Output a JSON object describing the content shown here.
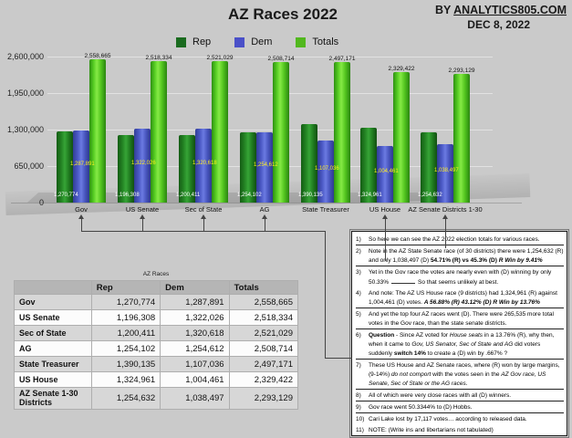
{
  "header": {
    "title": "AZ Races 2022",
    "by": "BY",
    "site": "ANALYTICS805.COM",
    "date": "DEC 8, 2022"
  },
  "legend": [
    {
      "label": "Rep",
      "color": "#1a6b1f"
    },
    {
      "label": "Dem",
      "color": "#4a50c8"
    },
    {
      "label": "Totals",
      "color": "#52b81e"
    }
  ],
  "chart_data": {
    "type": "bar",
    "title": "AZ Races 2022",
    "categories": [
      "Gov",
      "US Senate",
      "Sec of State",
      "AG",
      "State Treasurer",
      "US House",
      "AZ Senate Districts 1-30"
    ],
    "series": [
      {
        "name": "Rep",
        "color": "#1a6b1f",
        "values": [
          1270774,
          1196308,
          1200411,
          1254102,
          1390135,
          1324961,
          1254632
        ]
      },
      {
        "name": "Dem",
        "color": "#4a50c8",
        "values": [
          1287891,
          1322026,
          1320618,
          1254612,
          1107036,
          1004461,
          1038497
        ]
      },
      {
        "name": "Totals",
        "color": "#52b81e",
        "values": [
          2558665,
          2518334,
          2521029,
          2508714,
          2497171,
          2329422,
          2293129
        ]
      }
    ],
    "ylim": [
      0,
      2600000
    ],
    "yticks": [
      {
        "label": "2,600,000",
        "value": 2600000
      },
      {
        "label": "1,950,000",
        "value": 1950000
      },
      {
        "label": "1,300,000",
        "value": 1300000
      },
      {
        "label": "650,000",
        "value": 650000
      },
      {
        "label": "0",
        "value": 0
      }
    ],
    "grid": true,
    "legend_position": "top"
  },
  "table": {
    "title": "AZ Races",
    "columns": [
      "",
      "Rep",
      "Dem",
      "Totals"
    ],
    "rows": [
      {
        "label": "Gov",
        "rep": "1,270,774",
        "dem": "1,287,891",
        "totals": "2,558,665"
      },
      {
        "label": "US Senate",
        "rep": "1,196,308",
        "dem": "1,322,026",
        "totals": "2,518,334"
      },
      {
        "label": "Sec of State",
        "rep": "1,200,411",
        "dem": "1,320,618",
        "totals": "2,521,029"
      },
      {
        "label": "AG",
        "rep": "1,254,102",
        "dem": "1,254,612",
        "totals": "2,508,714"
      },
      {
        "label": "State Treasurer",
        "rep": "1,390,135",
        "dem": "1,107,036",
        "totals": "2,497,171"
      },
      {
        "label": "US House",
        "rep": "1,324,961",
        "dem": "1,004,461",
        "totals": "2,329,422"
      },
      {
        "label": "AZ Senate 1-30 Districts",
        "rep": "1,254,632",
        "dem": "1,038,497",
        "totals": "2,293,129"
      }
    ]
  },
  "notes": {
    "items": [
      {
        "num": "1)",
        "ruled": true,
        "segments": [
          {
            "t": "So here we can see the AZ 2022 election totals for various races."
          }
        ]
      },
      {
        "num": "2)",
        "ruled": true,
        "segments": [
          {
            "t": "Note in the AZ State Senate race (of 30 districts) there were 1,254,632 (R) and only 1,038,497 (D)    "
          },
          {
            "t": "54.71% (R) vs 45.3% (D)",
            "s": "b"
          },
          {
            "t": "   "
          },
          {
            "t": "R Win by 9.41%",
            "s": "bi"
          }
        ]
      },
      {
        "num": "3)",
        "ruled": false,
        "segments": [
          {
            "t": "Yet in the Gov race the votes are nearly even with (D) winning by only 50.33%"
          },
          {
            "gap": true
          },
          {
            "t": "So that seems unlikely at best."
          }
        ]
      },
      {
        "num": "4)",
        "ruled": true,
        "segments": [
          {
            "t": "And note: The AZ US House race (9 districts) had 1,324,961 (R) against 1,004,461 (D) votes.   "
          },
          {
            "t": "A 56.88% (R) 43.12% (D)",
            "s": "bi"
          },
          {
            "t": "   "
          },
          {
            "t": "R Win by 13.76%",
            "s": "bi"
          }
        ]
      },
      {
        "num": "5)",
        "ruled": true,
        "segments": [
          {
            "t": "And yet the top four AZ races went (D).   There were 265,535 more total votes in the Gov race, than the state senate districts."
          }
        ]
      },
      {
        "num": "6)",
        "ruled": true,
        "segments": [
          {
            "t": "Question",
            "s": "b"
          },
          {
            "t": " - Since AZ voted for "
          },
          {
            "t": "House seats",
            "s": "i"
          },
          {
            "t": " in a 13.76% (R), why then, when it came to "
          },
          {
            "t": "Gov, US Senator, Sec of State and AG",
            "s": "i"
          },
          {
            "t": " did voters suddenly "
          },
          {
            "t": "switch 14%",
            "s": "b"
          },
          {
            "t": " to create a (D) win by .667% ?"
          }
        ]
      },
      {
        "num": "7)",
        "ruled": true,
        "segments": [
          {
            "t": "These US House and AZ Senate races, where (R) won by large margins, (9-14%) "
          },
          {
            "t": "do not comport",
            "s": "i"
          },
          {
            "t": " with the votes seen in the "
          },
          {
            "t": "AZ Gov race,  US Senate, Sec of State or the AG races.",
            "s": "i"
          }
        ]
      },
      {
        "num": "8)",
        "ruled": true,
        "segments": [
          {
            "t": "All of which were very close races with all (D) winners."
          }
        ]
      },
      {
        "num": "9)",
        "ruled": true,
        "segments": [
          {
            "t": "Gov race went 50.3344% to (D) Hobbs."
          }
        ]
      },
      {
        "num": "10)",
        "ruled": false,
        "segments": [
          {
            "t": "Cari Lake lost by 17,117 votes… according to released data."
          }
        ]
      },
      {
        "num": "11)",
        "ruled": false,
        "segments": [
          {
            "t": "NOTE: (Write ins and libertarians not tabulated)"
          }
        ]
      }
    ]
  }
}
